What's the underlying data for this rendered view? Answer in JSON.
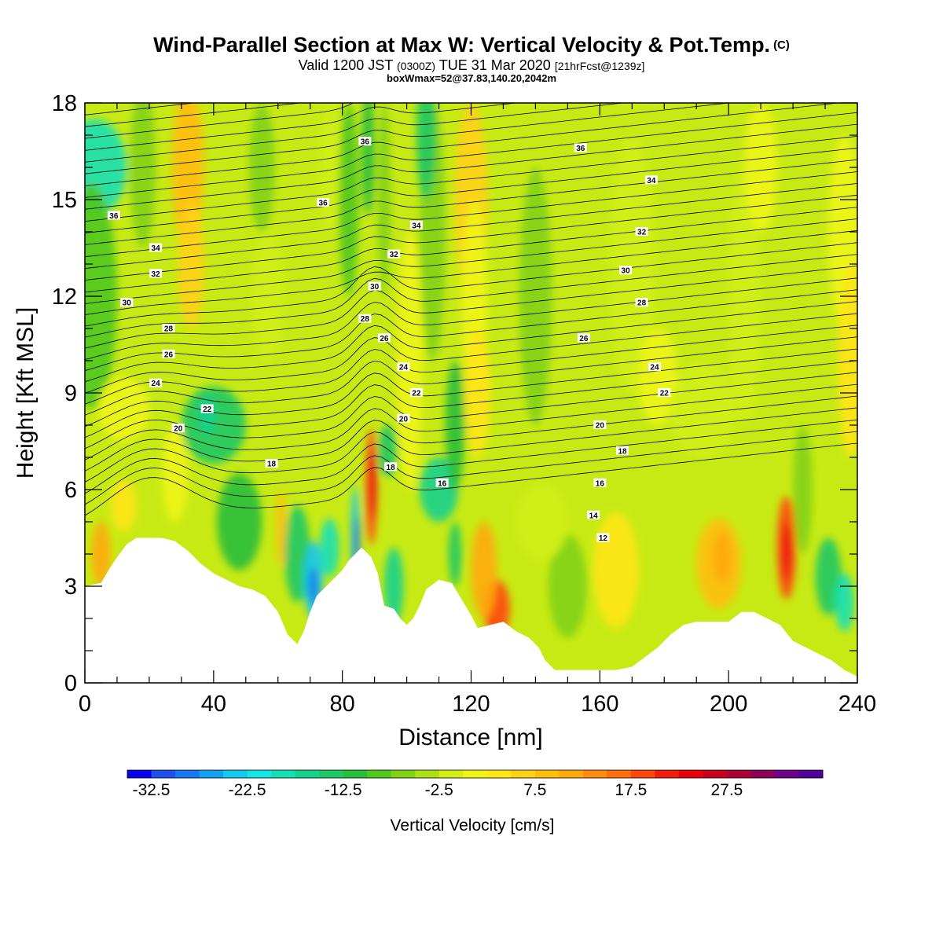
{
  "header": {
    "title": "Wind-Parallel Section at Max W: Vertical Velocity & Pot.Temp.",
    "title_mark": "(C)",
    "valid_prefix": "Valid 1200 JST",
    "valid_zulu": "(0300Z)",
    "valid_date": "TUE 31 Mar 2020",
    "forecast": "[21hrFcst@1239z]",
    "box_info": "boxWmax=52@37.83,140.20,2042m"
  },
  "chart_data": {
    "type": "heatmap",
    "xlabel": "Distance [nm]",
    "ylabel": "Height [Kft MSL]",
    "xlim": [
      0,
      240
    ],
    "ylim": [
      0,
      18
    ],
    "x_ticks": [
      "0",
      "40",
      "80",
      "120",
      "160",
      "200",
      "240"
    ],
    "y_ticks": [
      "0",
      "3",
      "6",
      "9",
      "12",
      "15",
      "18"
    ],
    "colorbar": {
      "title": "Vertical Velocity [cm/s]",
      "labels": [
        "-32.5",
        "-22.5",
        "-12.5",
        "-2.5",
        "7.5",
        "17.5",
        "27.5"
      ],
      "colors": [
        "#0a00f0",
        "#1e50f0",
        "#1478f0",
        "#14a0f0",
        "#14c8f0",
        "#14e6e6",
        "#14e0b4",
        "#14d28c",
        "#1ec864",
        "#28be3c",
        "#50c81e",
        "#82d214",
        "#aae014",
        "#d2f014",
        "#f0f514",
        "#ffe614",
        "#ffd214",
        "#ffbe0a",
        "#ffaa0a",
        "#ff8c0a",
        "#ff6e0a",
        "#ff460a",
        "#f01e0a",
        "#e6000a",
        "#c8001e",
        "#aa0032",
        "#8c005a",
        "#6e008c",
        "#500096"
      ]
    },
    "terrain_kft": [
      [
        0,
        3.0
      ],
      [
        5,
        3.1
      ],
      [
        8,
        3.6
      ],
      [
        10,
        3.9
      ],
      [
        13,
        4.3
      ],
      [
        16,
        4.5
      ],
      [
        20,
        4.5
      ],
      [
        24,
        4.5
      ],
      [
        28,
        4.4
      ],
      [
        32,
        4.1
      ],
      [
        36,
        3.7
      ],
      [
        40,
        3.4
      ],
      [
        44,
        3.2
      ],
      [
        48,
        3.0
      ],
      [
        52,
        2.9
      ],
      [
        56,
        2.7
      ],
      [
        60,
        2.2
      ],
      [
        63,
        1.5
      ],
      [
        66,
        1.2
      ],
      [
        68,
        1.6
      ],
      [
        70,
        2.2
      ],
      [
        72,
        2.7
      ],
      [
        76,
        3.1
      ],
      [
        80,
        3.5
      ],
      [
        82,
        3.8
      ],
      [
        86,
        4.2
      ],
      [
        89,
        3.9
      ],
      [
        91,
        3.4
      ],
      [
        93,
        2.4
      ],
      [
        96,
        2.3
      ],
      [
        98,
        2.0
      ],
      [
        100,
        1.8
      ],
      [
        102,
        2.0
      ],
      [
        104,
        2.4
      ],
      [
        106,
        2.9
      ],
      [
        110,
        3.2
      ],
      [
        114,
        3.1
      ],
      [
        117,
        2.6
      ],
      [
        120,
        2.1
      ],
      [
        122,
        1.7
      ],
      [
        126,
        1.8
      ],
      [
        130,
        1.9
      ],
      [
        134,
        1.6
      ],
      [
        138,
        1.4
      ],
      [
        141,
        1.1
      ],
      [
        143,
        0.7
      ],
      [
        146,
        0.4
      ],
      [
        150,
        0.4
      ],
      [
        155,
        0.4
      ],
      [
        160,
        0.4
      ],
      [
        165,
        0.4
      ],
      [
        170,
        0.5
      ],
      [
        174,
        0.8
      ],
      [
        178,
        1.1
      ],
      [
        182,
        1.5
      ],
      [
        186,
        1.8
      ],
      [
        190,
        1.9
      ],
      [
        196,
        1.9
      ],
      [
        200,
        1.9
      ],
      [
        204,
        2.2
      ],
      [
        208,
        2.2
      ],
      [
        212,
        2.0
      ],
      [
        216,
        1.8
      ],
      [
        220,
        1.3
      ],
      [
        224,
        1.1
      ],
      [
        228,
        0.9
      ],
      [
        232,
        0.7
      ],
      [
        236,
        0.4
      ],
      [
        240,
        0.2
      ]
    ],
    "isentropes": {
      "levels": [
        12,
        14,
        16,
        18,
        20,
        22,
        24,
        26,
        28,
        30,
        32,
        34,
        36
      ],
      "labels": [
        {
          "text": "36",
          "x": 9,
          "y": 14.5
        },
        {
          "text": "34",
          "x": 22,
          "y": 13.5
        },
        {
          "text": "32",
          "x": 22,
          "y": 12.7
        },
        {
          "text": "30",
          "x": 13,
          "y": 11.8
        },
        {
          "text": "28",
          "x": 26,
          "y": 11.0
        },
        {
          "text": "26",
          "x": 26,
          "y": 10.2
        },
        {
          "text": "24",
          "x": 22,
          "y": 9.3
        },
        {
          "text": "22",
          "x": 38,
          "y": 8.5
        },
        {
          "text": "20",
          "x": 29,
          "y": 7.9
        },
        {
          "text": "18",
          "x": 58,
          "y": 6.8
        },
        {
          "text": "36",
          "x": 74,
          "y": 14.9
        },
        {
          "text": "36",
          "x": 87,
          "y": 16.8
        },
        {
          "text": "34",
          "x": 103,
          "y": 14.2
        },
        {
          "text": "32",
          "x": 96,
          "y": 13.3
        },
        {
          "text": "30",
          "x": 90,
          "y": 12.3
        },
        {
          "text": "28",
          "x": 87,
          "y": 11.3
        },
        {
          "text": "26",
          "x": 93,
          "y": 10.7
        },
        {
          "text": "24",
          "x": 99,
          "y": 9.8
        },
        {
          "text": "22",
          "x": 103,
          "y": 9.0
        },
        {
          "text": "20",
          "x": 99,
          "y": 8.2
        },
        {
          "text": "18",
          "x": 95,
          "y": 6.7
        },
        {
          "text": "16",
          "x": 111,
          "y": 6.2
        },
        {
          "text": "36",
          "x": 154,
          "y": 16.6
        },
        {
          "text": "34",
          "x": 176,
          "y": 15.6
        },
        {
          "text": "32",
          "x": 173,
          "y": 14.0
        },
        {
          "text": "30",
          "x": 168,
          "y": 12.8
        },
        {
          "text": "28",
          "x": 173,
          "y": 11.8
        },
        {
          "text": "26",
          "x": 155,
          "y": 10.7
        },
        {
          "text": "24",
          "x": 177,
          "y": 9.8
        },
        {
          "text": "22",
          "x": 180,
          "y": 9.0
        },
        {
          "text": "20",
          "x": 160,
          "y": 8.0
        },
        {
          "text": "18",
          "x": 167,
          "y": 7.2
        },
        {
          "text": "16",
          "x": 160,
          "y": 6.2
        },
        {
          "text": "14",
          "x": 158,
          "y": 5.2
        },
        {
          "text": "12",
          "x": 161,
          "y": 4.5
        }
      ]
    }
  }
}
